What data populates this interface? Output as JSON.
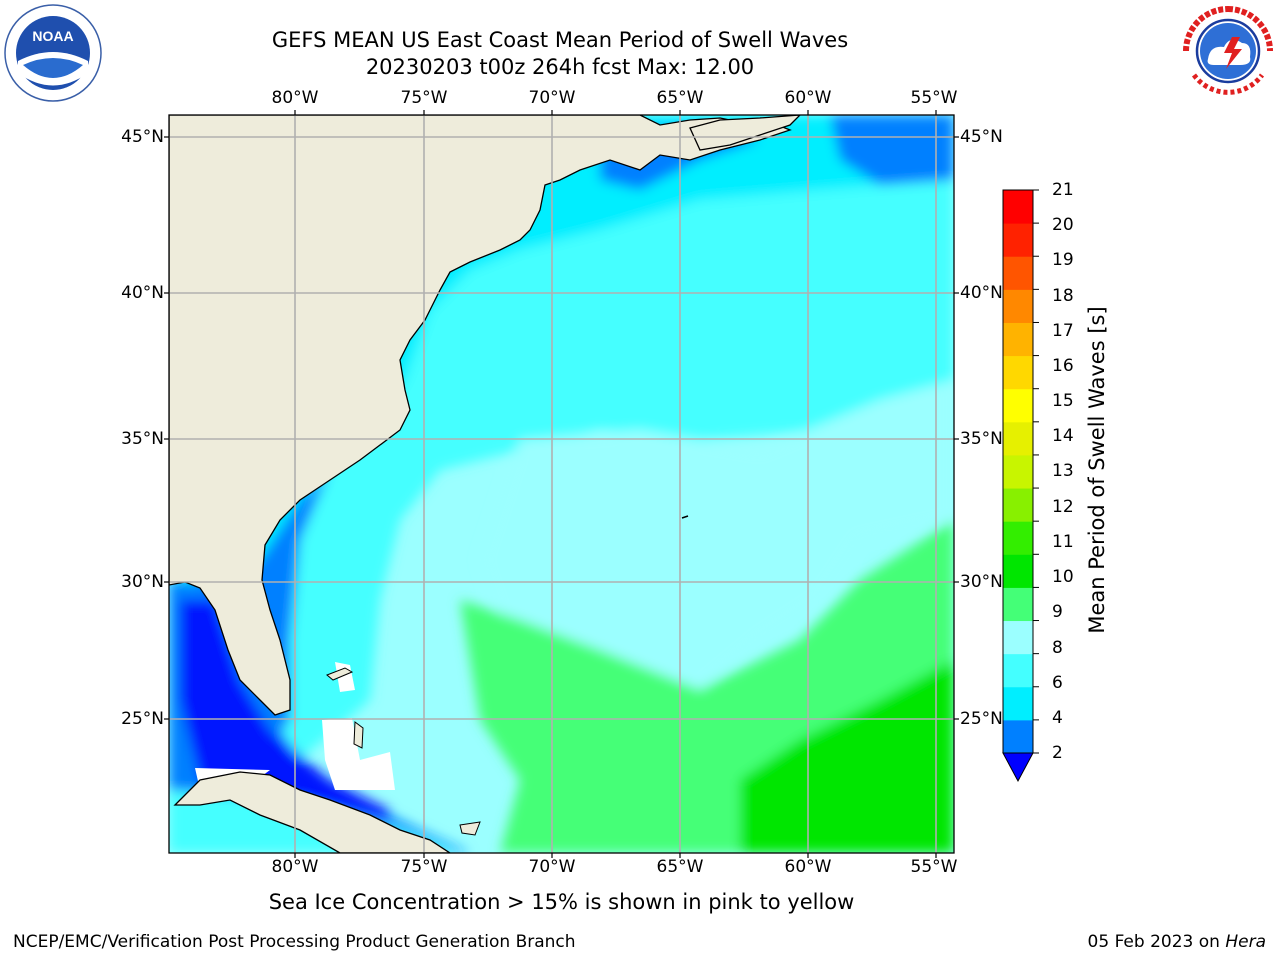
{
  "title": {
    "line1": "GEFS MEAN US East Coast Mean Period of Swell Waves",
    "line2": "20230203 t00z 264h fcst   Max: 12.00"
  },
  "map": {
    "lon_ticks": [
      "80°W",
      "75°W",
      "70°W",
      "65°W",
      "60°W",
      "55°W"
    ],
    "lat_ticks": [
      "45°N",
      "40°N",
      "35°N",
      "30°N",
      "25°N"
    ],
    "colors": {
      "land": "#eeecdb",
      "grid": "#b0b0b0",
      "coast": "#000000",
      "sea_ice_mask": "#ffffff"
    }
  },
  "colorbar": {
    "title": "Mean Period of Swell Waves [s]",
    "labels": [
      "2",
      "4",
      "6",
      "8",
      "9",
      "10",
      "11",
      "12",
      "13",
      "14",
      "15",
      "16",
      "17",
      "18",
      "19",
      "20",
      "21"
    ],
    "colors": [
      "#0000ff",
      "#0080ff",
      "#00eeff",
      "#44ffff",
      "#9bffff",
      "#44ff77",
      "#00e600",
      "#33ee00",
      "#88f000",
      "#c8f500",
      "#e6f000",
      "#ffff00",
      "#ffd800",
      "#ffb300",
      "#ff8800",
      "#ff5500",
      "#ff2200",
      "#ff0000"
    ]
  },
  "note": "Sea Ice Concentration > 15% is shown in pink to yellow",
  "footer": {
    "credit": "NCEP/EMC/Verification Post Processing Product Generation Branch",
    "date_prefix": "05 Feb 2023 on ",
    "machine": "Hera"
  },
  "logos": {
    "left": "NOAA",
    "right": "NATIONAL WEATHER SERVICE"
  }
}
